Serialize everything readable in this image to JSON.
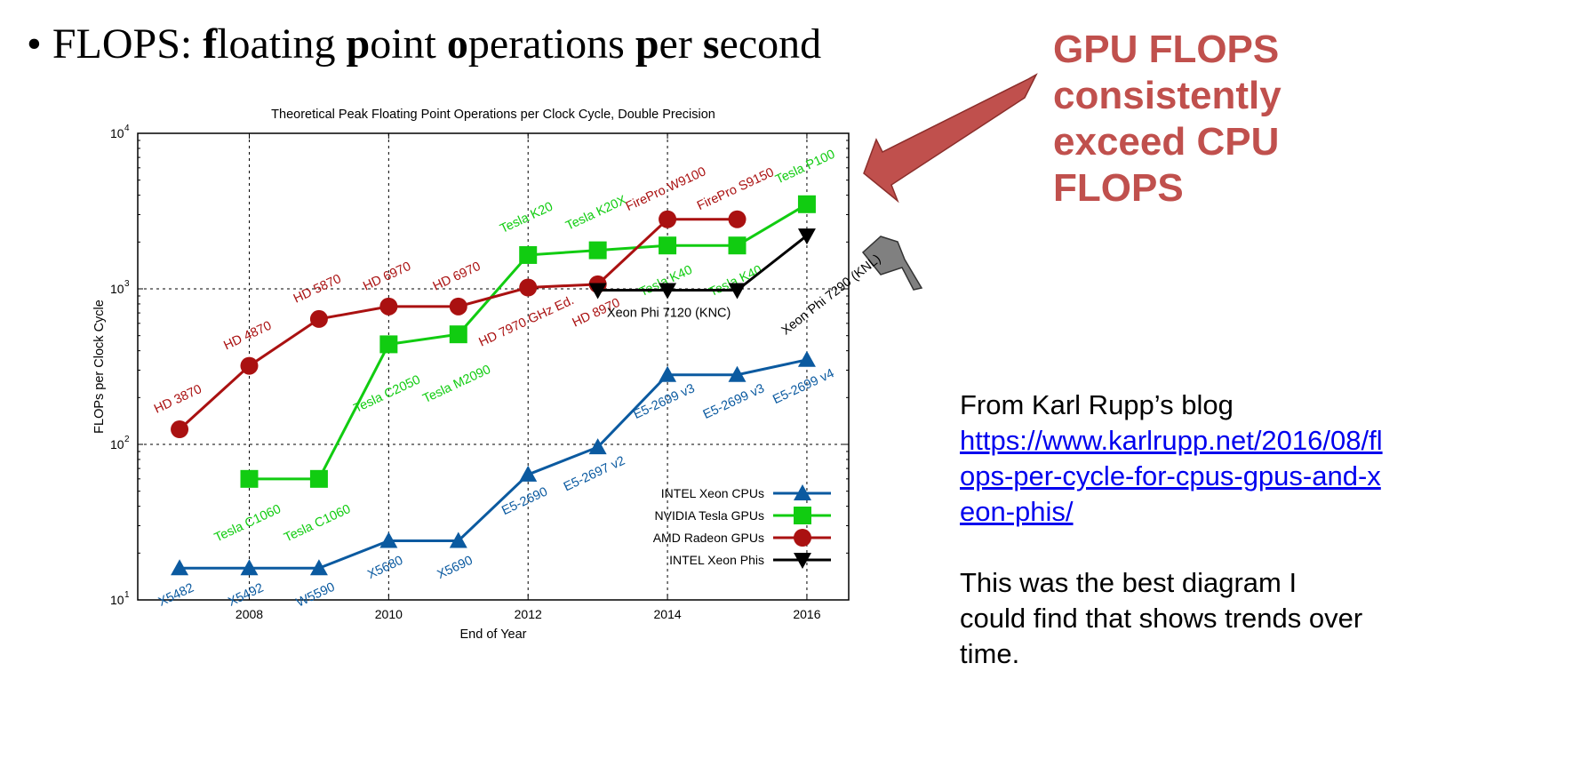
{
  "slide": {
    "bullet_char": "•",
    "heading_parts": [
      {
        "t": "FLOPS: ",
        "b": false
      },
      {
        "t": "f",
        "b": true
      },
      {
        "t": "loating ",
        "b": false
      },
      {
        "t": "p",
        "b": true
      },
      {
        "t": "oint ",
        "b": false
      },
      {
        "t": "o",
        "b": true
      },
      {
        "t": "perations ",
        "b": false
      },
      {
        "t": "p",
        "b": true
      },
      {
        "t": "er ",
        "b": false
      },
      {
        "t": "s",
        "b": true
      },
      {
        "t": "econd",
        "b": false
      }
    ],
    "callout": "GPU FLOPS consistently exceed CPU FLOPS",
    "source_label": "From Karl Rupp’s blog",
    "source_link": "https://www.karlrupp.net/2016/08/flops-per-cycle-for-cpus-gpus-and-xeon-phis/",
    "note": "This was the best diagram I could find that shows trends over time."
  },
  "colors": {
    "intel_cpu": "#0b5aa0",
    "nvidia": "#11cc11",
    "amd": "#aa1111",
    "xeon_phi": "#000000",
    "callout": "#c0504d",
    "arrow_red": "#c0504d",
    "arrow_gray": "#808080"
  },
  "chart_data": {
    "type": "line",
    "title": "Theoretical Peak Floating Point Operations per Clock Cycle, Double Precision",
    "xlabel": "End of Year",
    "ylabel": "FLOPs per Clock Cycle",
    "xlim": [
      2006.4,
      2016.6
    ],
    "ylim": [
      10,
      10000
    ],
    "yscale": "log",
    "xticks": [
      2008,
      2010,
      2012,
      2014,
      2016
    ],
    "yticks": [
      {
        "base": "10",
        "exp": "1",
        "value": 10
      },
      {
        "base": "10",
        "exp": "2",
        "value": 100
      },
      {
        "base": "10",
        "exp": "3",
        "value": 1000
      },
      {
        "base": "10",
        "exp": "4",
        "value": 10000
      }
    ],
    "grid": true,
    "legend_position": "bottom-right",
    "series": [
      {
        "name": "INTEL Xeon CPUs",
        "key": "intel_cpu",
        "marker": "triangle-up",
        "label_pos": "below",
        "x": [
          2007,
          2008,
          2009,
          2010,
          2011,
          2012,
          2013,
          2014,
          2015,
          2016
        ],
        "values": [
          16,
          16,
          16,
          24,
          24,
          64,
          96,
          280,
          280,
          350
        ],
        "labels": [
          "X5482",
          "X5492",
          "W5590",
          "X5680",
          "X5690",
          "E5-2690",
          "E5-2697 v2",
          "E5-2699 v3",
          "E5-2699 v3",
          "E5-2699 v4"
        ]
      },
      {
        "name": "NVIDIA Tesla GPUs",
        "key": "nvidia",
        "marker": "square",
        "label_pos": "mixed",
        "x": [
          2008,
          2009,
          2010,
          2011,
          2012,
          2013,
          2014,
          2015,
          2016
        ],
        "values": [
          60,
          60,
          440,
          510,
          1650,
          1770,
          1900,
          1900,
          3500
        ],
        "labels": [
          "Tesla C1060",
          "Tesla C1060",
          "Tesla C2050",
          "Tesla M2090",
          "Tesla K20",
          "Tesla K20X",
          "Tesla K40",
          "Tesla K40",
          "Tesla P100"
        ]
      },
      {
        "name": "AMD Radeon GPUs",
        "key": "amd",
        "marker": "circle",
        "label_pos": "mixed",
        "x": [
          2007,
          2008,
          2009,
          2010,
          2011,
          2012,
          2013,
          2014,
          2015
        ],
        "values": [
          125,
          320,
          640,
          770,
          770,
          1020,
          1070,
          2800,
          2800
        ],
        "labels": [
          "HD 3870",
          "HD 4870",
          "HD 5870",
          "HD 6970",
          "HD 6970",
          "HD 7970 GHz Ed.",
          "HD 8970",
          "FirePro W9100",
          "FirePro S9150"
        ]
      },
      {
        "name": "INTEL Xeon Phis",
        "key": "xeon_phi",
        "marker": "triangle-down",
        "label_pos": "mixed",
        "x": [
          2013,
          2014,
          2015,
          2016
        ],
        "values": [
          980,
          980,
          980,
          2200
        ],
        "labels": [
          "Xeon Phi 7120 (KNC)",
          "",
          "",
          "Xeon Phi 7290 (KNL)"
        ]
      }
    ]
  }
}
